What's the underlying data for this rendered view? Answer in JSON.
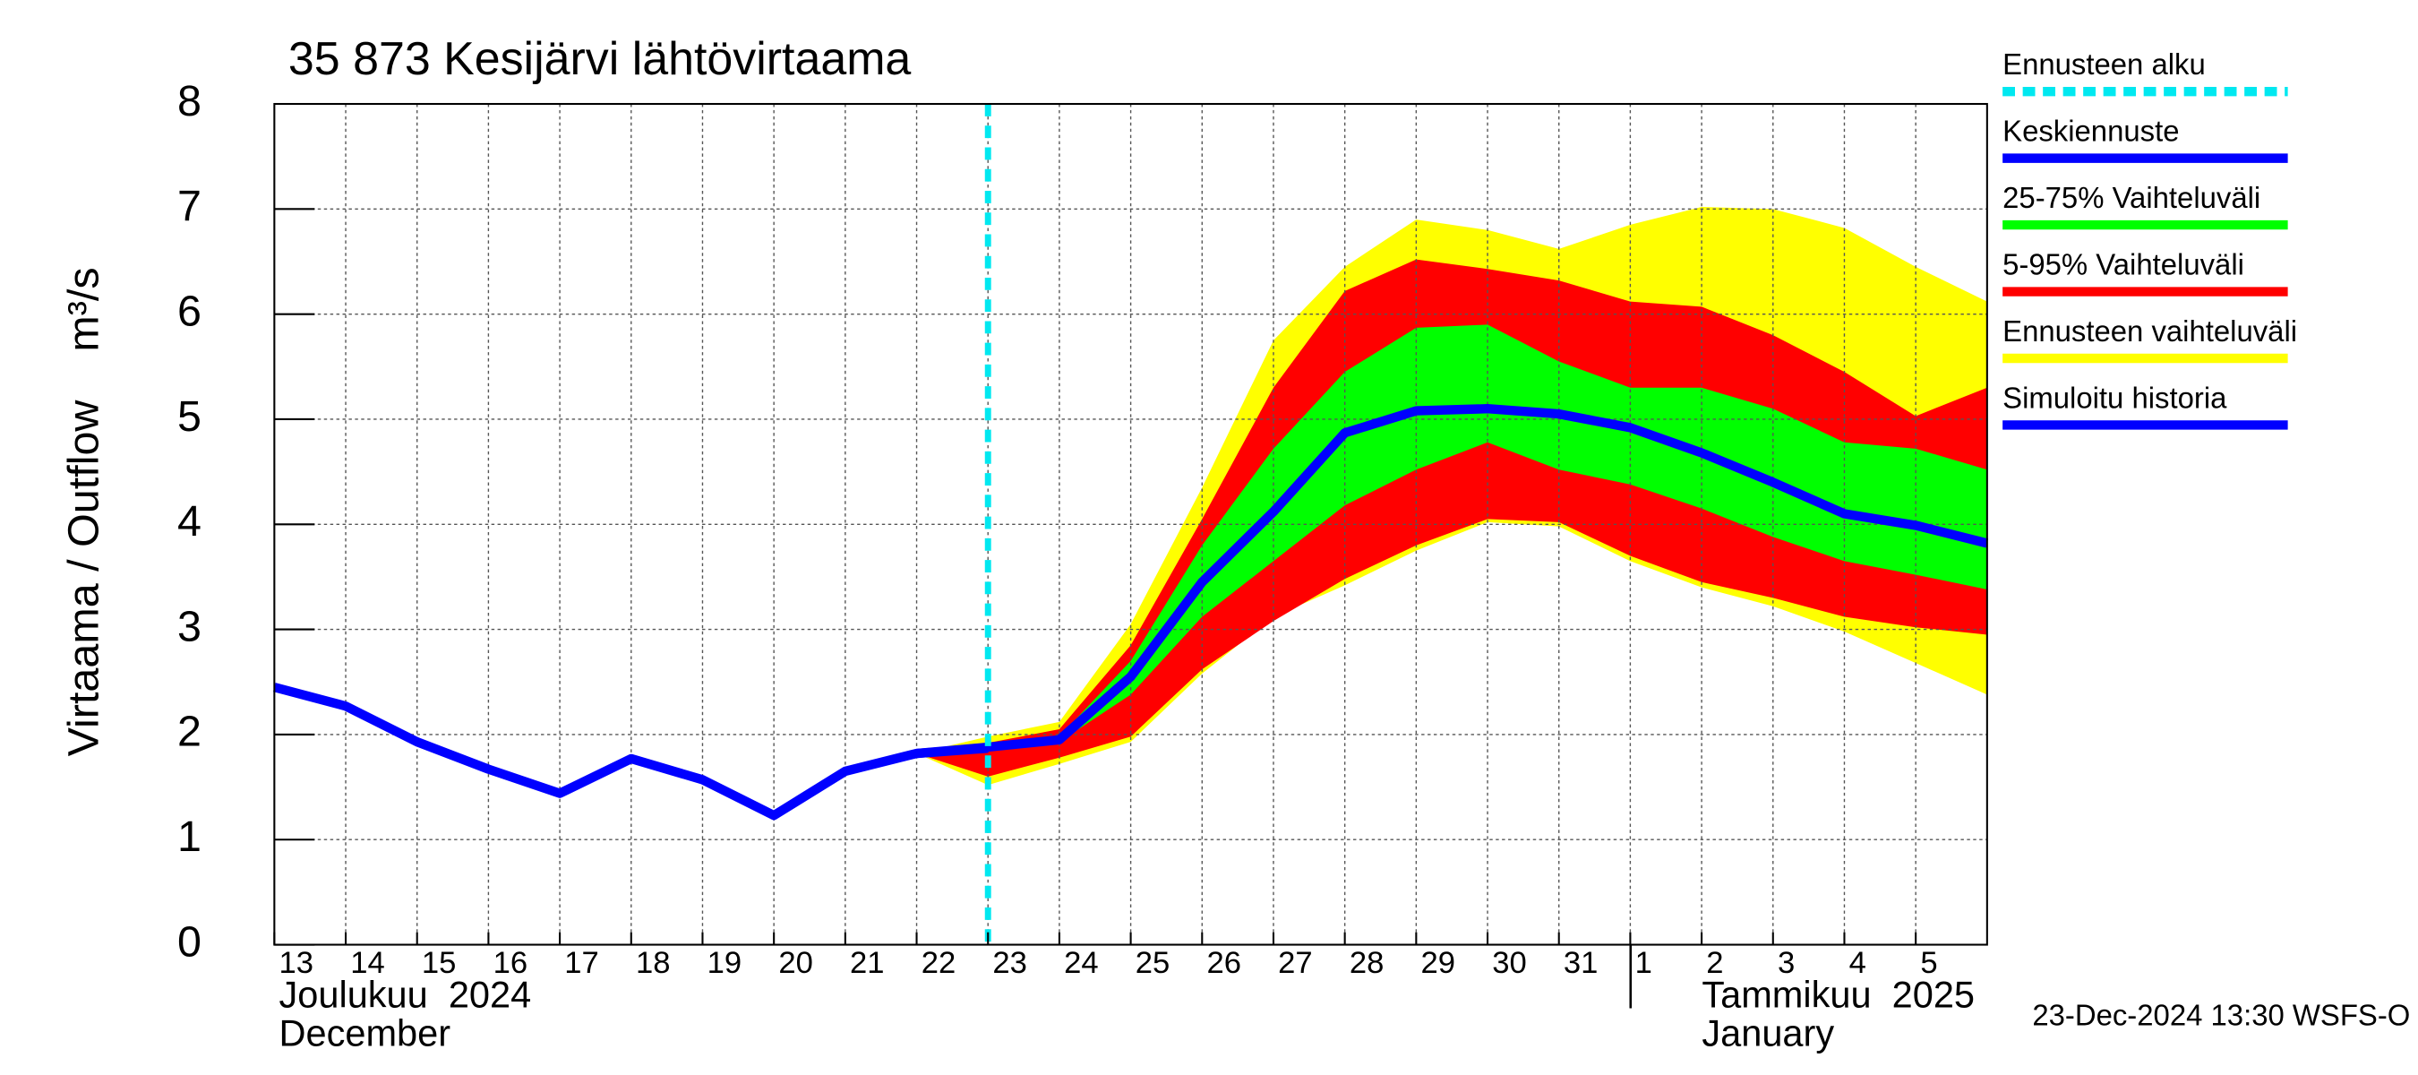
{
  "chart_data": {
    "type": "forecast",
    "title": "35 873 Kesijärvi lähtövirtaama",
    "y_label": "Virtaama / Outflow    m³/s",
    "footer": "23-Dec-2024 13:30 WSFS-O",
    "month_labels": [
      {
        "fi": "Joulukuu  2024",
        "en": "December"
      },
      {
        "fi": "Tammikuu  2025",
        "en": "January"
      }
    ],
    "xlim": [
      "2024-12-13",
      "2025-01-06"
    ],
    "ylim": [
      0,
      8
    ],
    "yticks": [
      0,
      1,
      2,
      3,
      4,
      5,
      6,
      7,
      8
    ],
    "xticks": [
      {
        "value": "2024-12-13",
        "label": "13"
      },
      {
        "value": "2024-12-14",
        "label": "14"
      },
      {
        "value": "2024-12-15",
        "label": "15"
      },
      {
        "value": "2024-12-16",
        "label": "16"
      },
      {
        "value": "2024-12-17",
        "label": "17"
      },
      {
        "value": "2024-12-18",
        "label": "18"
      },
      {
        "value": "2024-12-19",
        "label": "19"
      },
      {
        "value": "2024-12-20",
        "label": "20"
      },
      {
        "value": "2024-12-21",
        "label": "21"
      },
      {
        "value": "2024-12-22",
        "label": "22"
      },
      {
        "value": "2024-12-23",
        "label": "23"
      },
      {
        "value": "2024-12-24",
        "label": "24"
      },
      {
        "value": "2024-12-25",
        "label": "25"
      },
      {
        "value": "2024-12-26",
        "label": "26"
      },
      {
        "value": "2024-12-27",
        "label": "27"
      },
      {
        "value": "2024-12-28",
        "label": "28"
      },
      {
        "value": "2024-12-29",
        "label": "29"
      },
      {
        "value": "2024-12-30",
        "label": "30"
      },
      {
        "value": "2024-12-31",
        "label": "31"
      },
      {
        "value": "2025-01-01",
        "label": "1"
      },
      {
        "value": "2025-01-02",
        "label": "2"
      },
      {
        "value": "2025-01-03",
        "label": "3"
      },
      {
        "value": "2025-01-04",
        "label": "4"
      },
      {
        "value": "2025-01-05",
        "label": "5"
      }
    ],
    "grid": true,
    "forecast_start": {
      "name": "Ennusteen alku",
      "color": "#00e8f0",
      "x": "2024-12-23"
    },
    "series": [
      {
        "name": "Keskiennuste",
        "kind": "line",
        "color": "#0000ff",
        "x": [
          "2024-12-22",
          "2024-12-23",
          "2024-12-24",
          "2024-12-25",
          "2024-12-26",
          "2024-12-27",
          "2024-12-28",
          "2024-12-29",
          "2024-12-30",
          "2024-12-31",
          "2025-01-01",
          "2025-01-02",
          "2025-01-03",
          "2025-01-04",
          "2025-01-05",
          "2025-01-06"
        ],
        "values": [
          1.82,
          1.88,
          1.95,
          2.55,
          3.45,
          4.12,
          4.87,
          5.08,
          5.1,
          5.05,
          4.92,
          4.68,
          4.4,
          4.1,
          3.99,
          3.82
        ]
      },
      {
        "name": "25-75% Vaihteluväli",
        "kind": "band",
        "color": "#00ff00",
        "x": [
          "2024-12-22",
          "2024-12-23",
          "2024-12-24",
          "2024-12-25",
          "2024-12-26",
          "2024-12-27",
          "2024-12-28",
          "2024-12-29",
          "2024-12-30",
          "2024-12-31",
          "2025-01-01",
          "2025-01-02",
          "2025-01-03",
          "2025-01-04",
          "2025-01-05",
          "2025-01-06"
        ],
        "upper": [
          1.82,
          1.88,
          1.98,
          2.7,
          3.8,
          4.72,
          5.45,
          5.87,
          5.9,
          5.55,
          5.3,
          5.3,
          5.1,
          4.78,
          4.72,
          4.52
        ],
        "lower": [
          1.82,
          1.85,
          1.93,
          2.38,
          3.12,
          3.65,
          4.18,
          4.52,
          4.78,
          4.52,
          4.38,
          4.15,
          3.88,
          3.65,
          3.52,
          3.38
        ]
      },
      {
        "name": "5-95% Vaihteluväli",
        "kind": "band",
        "color": "#ff0000",
        "x": [
          "2024-12-22",
          "2024-12-23",
          "2024-12-24",
          "2024-12-25",
          "2024-12-26",
          "2024-12-27",
          "2024-12-28",
          "2024-12-29",
          "2024-12-30",
          "2024-12-31",
          "2025-01-01",
          "2025-01-02",
          "2025-01-03",
          "2025-01-04",
          "2025-01-05",
          "2025-01-06"
        ],
        "upper": [
          1.82,
          1.92,
          2.05,
          2.85,
          4.05,
          5.3,
          6.22,
          6.52,
          6.43,
          6.32,
          6.12,
          6.07,
          5.8,
          5.45,
          5.03,
          5.3
        ],
        "lower": [
          1.82,
          1.6,
          1.78,
          1.98,
          2.62,
          3.08,
          3.48,
          3.8,
          4.05,
          4.02,
          3.7,
          3.45,
          3.3,
          3.12,
          3.02,
          2.95
        ]
      },
      {
        "name": "Ennusteen vaihteluväli",
        "kind": "band",
        "color": "#ffff00",
        "x": [
          "2024-12-22",
          "2024-12-23",
          "2024-12-24",
          "2024-12-25",
          "2024-12-26",
          "2024-12-27",
          "2024-12-28",
          "2024-12-29",
          "2024-12-30",
          "2024-12-31",
          "2025-01-01",
          "2025-01-02",
          "2025-01-03",
          "2025-01-04",
          "2025-01-05",
          "2025-01-06"
        ],
        "upper": [
          1.82,
          1.98,
          2.12,
          3.05,
          4.35,
          5.75,
          6.45,
          6.9,
          6.8,
          6.62,
          6.85,
          7.02,
          7.0,
          6.82,
          6.45,
          6.12
        ],
        "lower": [
          1.82,
          1.52,
          1.72,
          1.93,
          2.58,
          3.12,
          3.42,
          3.75,
          4.02,
          3.98,
          3.65,
          3.4,
          3.22,
          2.98,
          2.68,
          2.38
        ]
      },
      {
        "name": "Simuloitu historia",
        "kind": "line",
        "color": "#0000ff",
        "x": [
          "2024-12-13",
          "2024-12-14",
          "2024-12-15",
          "2024-12-16",
          "2024-12-17",
          "2024-12-18",
          "2024-12-19",
          "2024-12-20",
          "2024-12-21",
          "2024-12-22",
          "2024-12-23"
        ],
        "values": [
          2.45,
          2.27,
          1.93,
          1.67,
          1.44,
          1.77,
          1.57,
          1.23,
          1.65,
          1.82,
          1.87
        ]
      }
    ]
  }
}
